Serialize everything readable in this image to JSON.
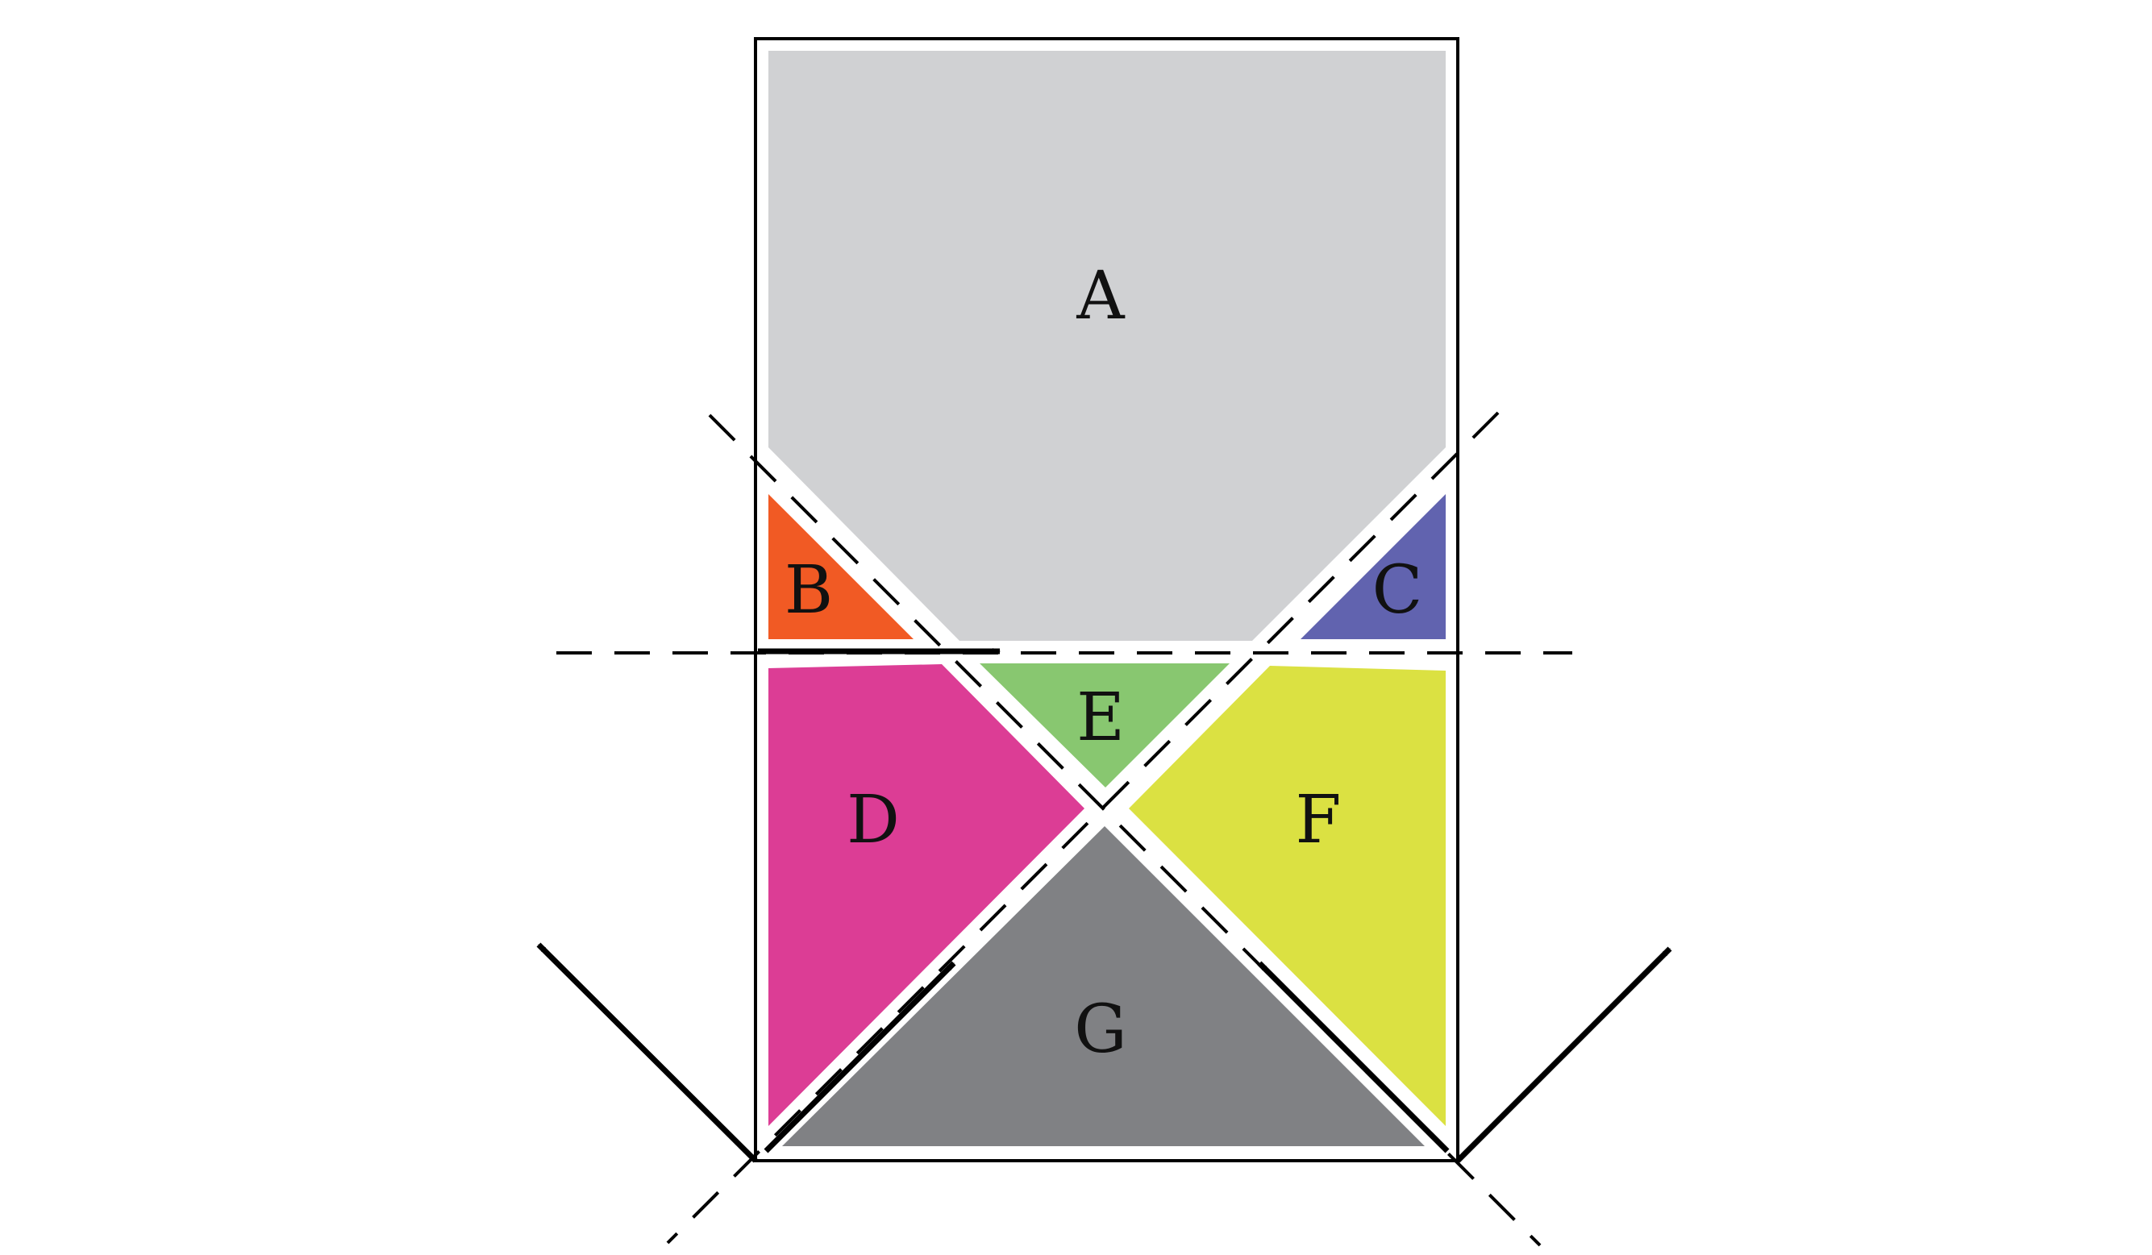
{
  "diagram": {
    "regions": [
      {
        "id": "A",
        "label": "A",
        "color": "#d0d1d3"
      },
      {
        "id": "B",
        "label": "B",
        "color": "#f15a24"
      },
      {
        "id": "C",
        "label": "C",
        "color": "#6163af"
      },
      {
        "id": "D",
        "label": "D",
        "color": "#dc3d95"
      },
      {
        "id": "E",
        "label": "E",
        "color": "#88c770"
      },
      {
        "id": "F",
        "label": "F",
        "color": "#dbe142"
      },
      {
        "id": "G",
        "label": "G",
        "color": "#808184"
      }
    ],
    "frame_color": "#000000",
    "line_color": "#000000"
  }
}
